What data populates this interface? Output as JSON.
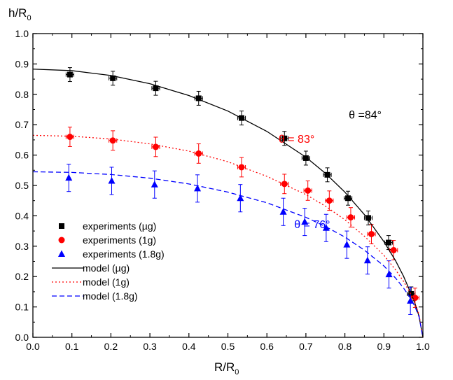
{
  "chart_data": {
    "type": "scatter",
    "xlabel": "R/R",
    "xlabel_sub": "0",
    "ylabel": "h/R",
    "ylabel_sub": "0",
    "xlim": [
      0.0,
      1.0
    ],
    "ylim": [
      0.0,
      1.0
    ],
    "x_ticks": [
      "0.0",
      "0.1",
      "0.2",
      "0.3",
      "0.4",
      "0.5",
      "0.6",
      "0.7",
      "0.8",
      "0.9",
      "1.0"
    ],
    "y_ticks": [
      "0.0",
      "0.1",
      "0.2",
      "0.3",
      "0.4",
      "0.5",
      "0.6",
      "0.7",
      "0.8",
      "0.9",
      "1.0"
    ],
    "grid": false,
    "legend_position": "lower-left",
    "series": [
      {
        "name": "experiments (µg)",
        "kind": "points",
        "marker": "square",
        "color": "#000000",
        "points": [
          {
            "x": 0.095,
            "y": 0.865,
            "xerr": 0.01,
            "yerr": 0.023
          },
          {
            "x": 0.205,
            "y": 0.853,
            "xerr": 0.01,
            "yerr": 0.023
          },
          {
            "x": 0.315,
            "y": 0.82,
            "xerr": 0.01,
            "yerr": 0.023
          },
          {
            "x": 0.425,
            "y": 0.787,
            "xerr": 0.01,
            "yerr": 0.023
          },
          {
            "x": 0.535,
            "y": 0.722,
            "xerr": 0.01,
            "yerr": 0.023
          },
          {
            "x": 0.645,
            "y": 0.655,
            "xerr": 0.01,
            "yerr": 0.023
          },
          {
            "x": 0.7,
            "y": 0.59,
            "xerr": 0.01,
            "yerr": 0.023
          },
          {
            "x": 0.755,
            "y": 0.535,
            "xerr": 0.01,
            "yerr": 0.023
          },
          {
            "x": 0.808,
            "y": 0.458,
            "xerr": 0.01,
            "yerr": 0.023
          },
          {
            "x": 0.86,
            "y": 0.393,
            "xerr": 0.01,
            "yerr": 0.023
          },
          {
            "x": 0.912,
            "y": 0.312,
            "xerr": 0.01,
            "yerr": 0.023
          },
          {
            "x": 0.97,
            "y": 0.143,
            "xerr": 0.01,
            "yerr": 0.023
          }
        ]
      },
      {
        "name": "experiments (1g)",
        "kind": "points",
        "marker": "circle",
        "color": "#ff0000",
        "points": [
          {
            "x": 0.095,
            "y": 0.66,
            "xerr": 0.01,
            "yerr": 0.032
          },
          {
            "x": 0.205,
            "y": 0.648,
            "xerr": 0.01,
            "yerr": 0.032
          },
          {
            "x": 0.315,
            "y": 0.627,
            "xerr": 0.01,
            "yerr": 0.032
          },
          {
            "x": 0.425,
            "y": 0.605,
            "xerr": 0.01,
            "yerr": 0.032
          },
          {
            "x": 0.535,
            "y": 0.56,
            "xerr": 0.01,
            "yerr": 0.032
          },
          {
            "x": 0.645,
            "y": 0.505,
            "xerr": 0.01,
            "yerr": 0.032
          },
          {
            "x": 0.705,
            "y": 0.483,
            "xerr": 0.01,
            "yerr": 0.032
          },
          {
            "x": 0.76,
            "y": 0.45,
            "xerr": 0.01,
            "yerr": 0.032
          },
          {
            "x": 0.815,
            "y": 0.395,
            "xerr": 0.01,
            "yerr": 0.032
          },
          {
            "x": 0.868,
            "y": 0.34,
            "xerr": 0.01,
            "yerr": 0.032
          },
          {
            "x": 0.925,
            "y": 0.287,
            "xerr": 0.01,
            "yerr": 0.032
          },
          {
            "x": 0.98,
            "y": 0.13,
            "xerr": 0.01,
            "yerr": 0.032
          }
        ]
      },
      {
        "name": "experiments (1.8g)",
        "kind": "points",
        "marker": "triangle",
        "color": "#0000ff",
        "points": [
          {
            "x": 0.092,
            "y": 0.525,
            "xerr": 0.0,
            "yerr": 0.045
          },
          {
            "x": 0.202,
            "y": 0.515,
            "xerr": 0.0,
            "yerr": 0.045
          },
          {
            "x": 0.312,
            "y": 0.503,
            "xerr": 0.0,
            "yerr": 0.045
          },
          {
            "x": 0.422,
            "y": 0.49,
            "xerr": 0.0,
            "yerr": 0.045
          },
          {
            "x": 0.532,
            "y": 0.458,
            "xerr": 0.0,
            "yerr": 0.045
          },
          {
            "x": 0.642,
            "y": 0.413,
            "xerr": 0.0,
            "yerr": 0.045
          },
          {
            "x": 0.697,
            "y": 0.38,
            "xerr": 0.0,
            "yerr": 0.045
          },
          {
            "x": 0.752,
            "y": 0.36,
            "xerr": 0.0,
            "yerr": 0.045
          },
          {
            "x": 0.805,
            "y": 0.305,
            "xerr": 0.0,
            "yerr": 0.045
          },
          {
            "x": 0.858,
            "y": 0.253,
            "xerr": 0.0,
            "yerr": 0.045
          },
          {
            "x": 0.913,
            "y": 0.207,
            "xerr": 0.0,
            "yerr": 0.045
          },
          {
            "x": 0.968,
            "y": 0.12,
            "xerr": 0.0,
            "yerr": 0.045
          }
        ]
      },
      {
        "name": "model (µg)",
        "kind": "line",
        "dash": "solid",
        "color": "#000000",
        "x": [
          0.0,
          0.1,
          0.2,
          0.3,
          0.4,
          0.5,
          0.6,
          0.7,
          0.75,
          0.8,
          0.85,
          0.9,
          0.93,
          0.95,
          0.97,
          0.98,
          0.99,
          1.0
        ],
        "y": [
          0.883,
          0.878,
          0.862,
          0.835,
          0.796,
          0.745,
          0.678,
          0.593,
          0.54,
          0.478,
          0.404,
          0.315,
          0.252,
          0.202,
          0.143,
          0.11,
          0.07,
          0.0
        ]
      },
      {
        "name": "model (1g)",
        "kind": "line",
        "dash": "dotted",
        "color": "#ff0000",
        "x": [
          0.0,
          0.1,
          0.2,
          0.3,
          0.4,
          0.5,
          0.6,
          0.7,
          0.75,
          0.8,
          0.85,
          0.9,
          0.93,
          0.95,
          0.97,
          0.98,
          0.99,
          1.0
        ],
        "y": [
          0.665,
          0.662,
          0.653,
          0.637,
          0.613,
          0.578,
          0.53,
          0.47,
          0.432,
          0.387,
          0.333,
          0.27,
          0.222,
          0.185,
          0.14,
          0.112,
          0.075,
          0.0
        ]
      },
      {
        "name": "model (1.8g)",
        "kind": "line",
        "dash": "dashed",
        "color": "#0000ff",
        "x": [
          0.0,
          0.1,
          0.2,
          0.3,
          0.4,
          0.5,
          0.6,
          0.7,
          0.75,
          0.8,
          0.85,
          0.9,
          0.93,
          0.95,
          0.97,
          0.98,
          0.99,
          1.0
        ],
        "y": [
          0.545,
          0.543,
          0.536,
          0.524,
          0.505,
          0.478,
          0.443,
          0.395,
          0.365,
          0.33,
          0.287,
          0.235,
          0.195,
          0.163,
          0.125,
          0.1,
          0.068,
          0.0
        ]
      }
    ],
    "annotations": [
      {
        "text": "θ =84°",
        "color": "#000000",
        "x": 0.81,
        "y": 0.72
      },
      {
        "text": "θ = 83°",
        "color": "#ff0000",
        "x": 0.63,
        "y": 0.64
      },
      {
        "text": "θ = 76°",
        "color": "#0000ff",
        "x": 0.67,
        "y": 0.36
      }
    ]
  }
}
